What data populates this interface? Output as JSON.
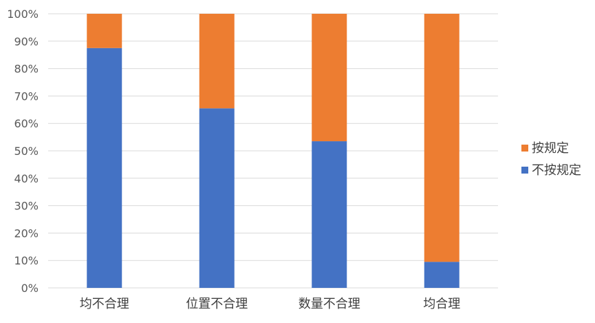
{
  "chart_data": {
    "type": "bar",
    "stacked": true,
    "percent": true,
    "categories": [
      "均不合理",
      "位置不合理",
      "数量不合理",
      "均合理"
    ],
    "series": [
      {
        "name": "不按规定",
        "values": [
          87.5,
          65.5,
          53.5,
          9.5
        ],
        "color": "#4472C4"
      },
      {
        "name": "按规定",
        "values": [
          12.5,
          34.5,
          46.5,
          90.5
        ],
        "color": "#ED7D31"
      }
    ],
    "ylim": [
      0,
      100
    ],
    "yticks": [
      "0%",
      "10%",
      "20%",
      "30%",
      "40%",
      "50%",
      "60%",
      "70%",
      "80%",
      "90%",
      "100%"
    ],
    "grid": true,
    "legend_position": "right"
  }
}
